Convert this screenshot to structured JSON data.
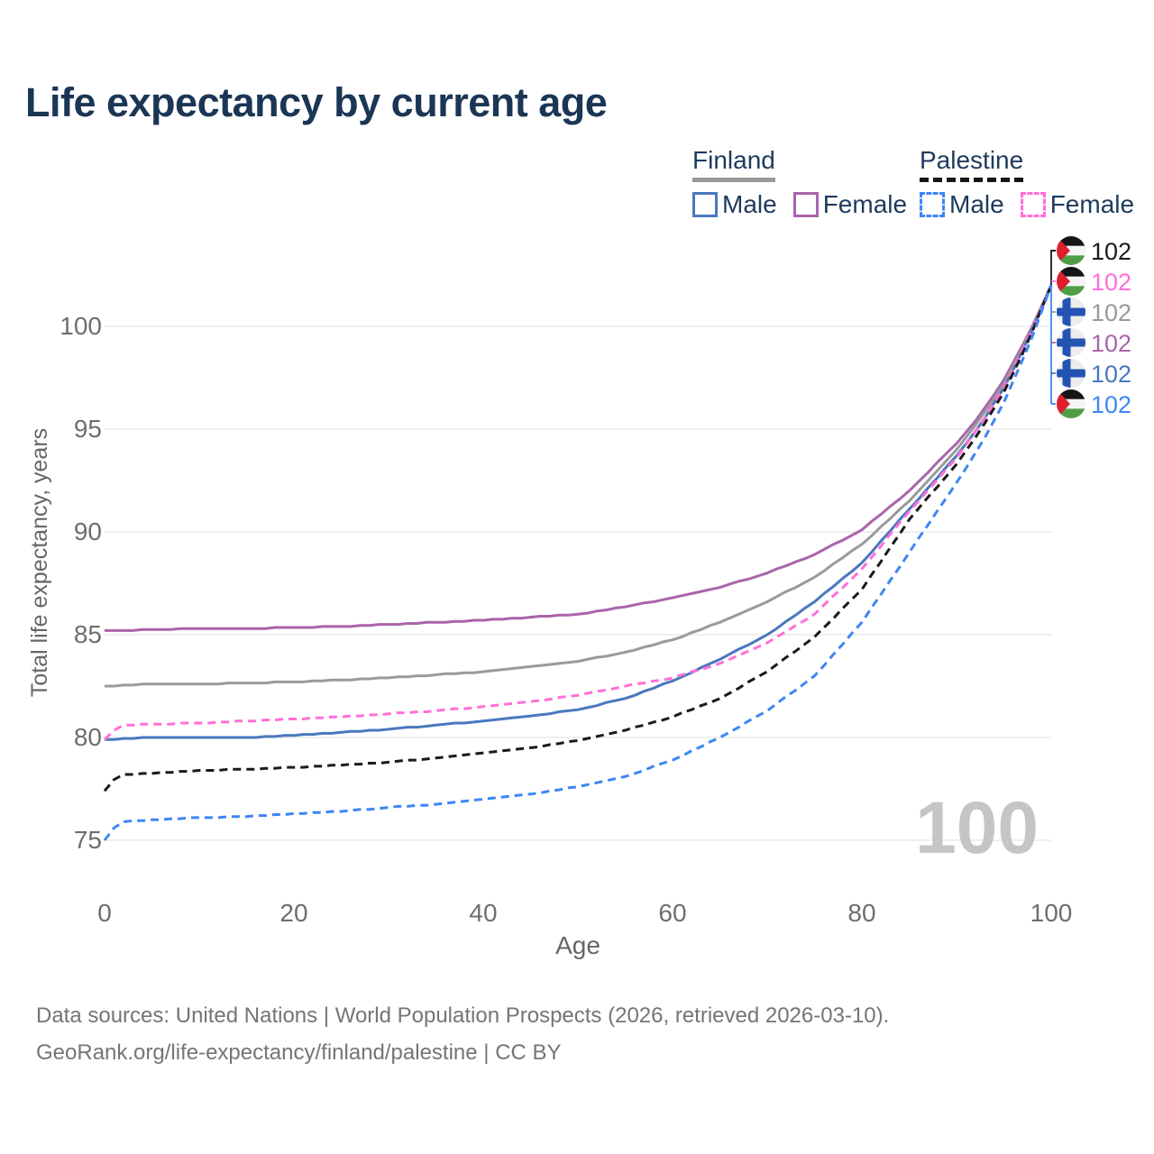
{
  "title": "Life expectancy by current age",
  "legend": {
    "finland": {
      "name": "Finland",
      "male": "Male",
      "female": "Female"
    },
    "palestine": {
      "name": "Palestine",
      "male": "Male",
      "female": "Female"
    }
  },
  "footer": {
    "line1": "Data sources: United Nations | World Population Prospects (2026, retrieved 2026-03-10).",
    "line2": "GeoRank.org/life-expectancy/finland/palestine | CC BY"
  },
  "colors": {
    "finland_male": "#4a78be",
    "finland_female": "#a964ab",
    "finland_total": "#9a9a9a",
    "palestine_male": "#3e86f5",
    "palestine_female": "#ff6fd8",
    "palestine_total": "#1a1a1a",
    "title_text": "#1b3655",
    "legend_text": "#1e3a5c",
    "axis_text": "#6e6e6e",
    "grid": "#eaeaea",
    "watermark": "#c5c5c5",
    "footer_text": "#757575",
    "finland_flag_blue": "#2353b3",
    "palestine_flag_green": "#4f9e45",
    "palestine_flag_red": "#dd1f2d"
  },
  "chart_data": {
    "type": "line",
    "title": "Life expectancy by current age",
    "xlabel": "Age",
    "ylabel": "Total life expectancy, years",
    "x_ticks": [
      0,
      20,
      40,
      60,
      80,
      100
    ],
    "y_ticks": [
      75,
      80,
      85,
      90,
      95,
      100
    ],
    "xlim": [
      0,
      100
    ],
    "ylim": [
      75,
      102
    ],
    "grid": "horizontal",
    "age_watermark": "100",
    "x": [
      0,
      1,
      2,
      5,
      10,
      15,
      20,
      25,
      30,
      35,
      40,
      45,
      50,
      55,
      60,
      65,
      70,
      75,
      80,
      85,
      90,
      92.5,
      95,
      97.5,
      100
    ],
    "series": [
      {
        "name": "Finland Female",
        "country": "finland",
        "sex": "female",
        "style": "solid",
        "color": "#a964ab",
        "end_value": 102,
        "values": [
          85.2,
          85.2,
          85.2,
          85.25,
          85.3,
          85.3,
          85.35,
          85.4,
          85.5,
          85.6,
          85.7,
          85.85,
          86.0,
          86.35,
          86.8,
          87.3,
          88.0,
          88.9,
          90.1,
          92.0,
          94.3,
          95.7,
          97.4,
          99.5,
          102
        ]
      },
      {
        "name": "Finland",
        "country": "finland",
        "sex": "both",
        "style": "solid",
        "color": "#9a9a9a",
        "end_value": 102,
        "values": [
          82.5,
          82.5,
          82.55,
          82.6,
          82.6,
          82.65,
          82.7,
          82.8,
          82.9,
          83.05,
          83.2,
          83.45,
          83.7,
          84.15,
          84.75,
          85.6,
          86.6,
          87.8,
          89.4,
          91.5,
          94.0,
          95.5,
          97.2,
          99.4,
          102
        ]
      },
      {
        "name": "Finland Male",
        "country": "finland",
        "sex": "male",
        "style": "solid",
        "color": "#4a78be",
        "end_value": 102,
        "values": [
          79.9,
          79.9,
          79.95,
          80.0,
          80.0,
          80.0,
          80.1,
          80.25,
          80.4,
          80.6,
          80.8,
          81.05,
          81.35,
          81.9,
          82.75,
          83.8,
          85.0,
          86.6,
          88.5,
          91.1,
          93.7,
          95.2,
          97.0,
          99.3,
          102
        ]
      },
      {
        "name": "Palestine Female",
        "country": "palestine",
        "sex": "female",
        "style": "dashed",
        "color": "#ff6fd8",
        "end_value": 102,
        "values": [
          79.9,
          80.35,
          80.6,
          80.65,
          80.7,
          80.8,
          80.9,
          81.0,
          81.15,
          81.3,
          81.5,
          81.75,
          82.05,
          82.5,
          82.9,
          83.6,
          84.6,
          86.0,
          88.2,
          91.0,
          93.6,
          95.2,
          97.0,
          99.3,
          102
        ]
      },
      {
        "name": "Palestine",
        "country": "palestine",
        "sex": "both",
        "style": "dashed",
        "color": "#1a1a1a",
        "end_value": 102,
        "values": [
          77.4,
          77.95,
          78.2,
          78.25,
          78.4,
          78.45,
          78.55,
          78.65,
          78.8,
          79.0,
          79.25,
          79.5,
          79.85,
          80.35,
          81.0,
          81.9,
          83.2,
          84.9,
          87.2,
          90.6,
          93.3,
          94.9,
          96.8,
          99.2,
          102
        ]
      },
      {
        "name": "Palestine Male",
        "country": "palestine",
        "sex": "male",
        "style": "dashed",
        "color": "#3e86f5",
        "end_value": 102,
        "values": [
          75.0,
          75.6,
          75.9,
          76.0,
          76.1,
          76.15,
          76.3,
          76.4,
          76.6,
          76.75,
          77.0,
          77.25,
          77.6,
          78.1,
          78.9,
          80.0,
          81.3,
          83.0,
          85.6,
          89.0,
          92.4,
          94.2,
          96.3,
          98.9,
          102
        ]
      }
    ],
    "end_labels": [
      {
        "text": "102",
        "country": "palestine",
        "series": "Palestine",
        "color": "#1a1a1a"
      },
      {
        "text": "102",
        "country": "palestine",
        "series": "Palestine Female",
        "color": "#ff6fd8"
      },
      {
        "text": "102",
        "country": "finland",
        "series": "Finland",
        "color": "#9a9a9a"
      },
      {
        "text": "102",
        "country": "finland",
        "series": "Finland Female",
        "color": "#a964ab"
      },
      {
        "text": "102",
        "country": "finland",
        "series": "Finland Male",
        "color": "#4a78be"
      },
      {
        "text": "102",
        "country": "palestine",
        "series": "Palestine Male",
        "color": "#3e86f5"
      }
    ]
  }
}
